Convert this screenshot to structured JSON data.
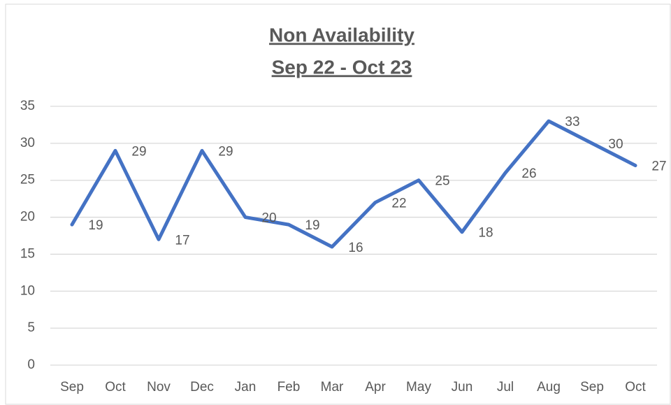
{
  "chart_data": {
    "type": "line",
    "title": "Non Availability",
    "subtitle": "Sep 22 - Oct 23",
    "categories": [
      "Sep",
      "Oct",
      "Nov",
      "Dec",
      "Jan",
      "Feb",
      "Mar",
      "Apr",
      "May",
      "Jun",
      "Jul",
      "Aug",
      "Sep",
      "Oct"
    ],
    "values": [
      19,
      29,
      17,
      29,
      20,
      19,
      16,
      22,
      25,
      18,
      26,
      33,
      30,
      27
    ],
    "color": "#4472c4",
    "ylim": [
      0,
      35
    ],
    "yticks": [
      0,
      5,
      10,
      15,
      20,
      25,
      30,
      35
    ],
    "grid": true
  }
}
